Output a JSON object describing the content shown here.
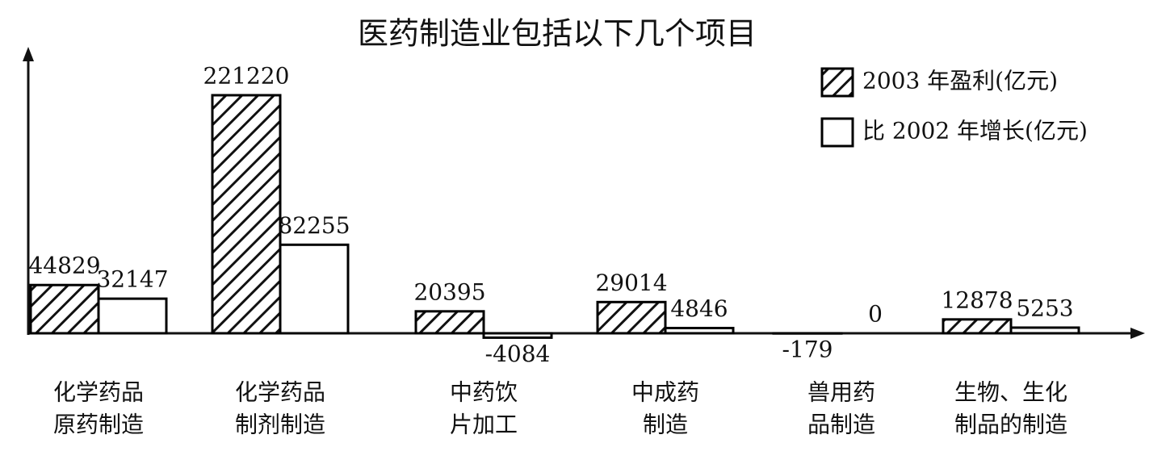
{
  "chart_data": {
    "type": "bar",
    "title": "医药制造业包括以下几个项目",
    "categories": [
      [
        "化学药品",
        "原药制造"
      ],
      [
        "化学药品",
        "制剂制造"
      ],
      [
        "中药饮",
        "片加工"
      ],
      [
        "中成药",
        "制造"
      ],
      [
        "兽用药",
        "品制造"
      ],
      [
        "生物、生化",
        "制品的制造"
      ]
    ],
    "series": [
      {
        "name": "2003 年盈利(亿元)",
        "color": "#000000",
        "hatched": true,
        "values": [
          44829,
          221220,
          20395,
          29014,
          -179,
          12878
        ]
      },
      {
        "name": "比 2002 年增长(亿元)",
        "color": "#000000",
        "hatched": false,
        "values": [
          32147,
          82255,
          -4084,
          4846,
          0,
          5253
        ]
      }
    ],
    "legend": "upper-right"
  }
}
